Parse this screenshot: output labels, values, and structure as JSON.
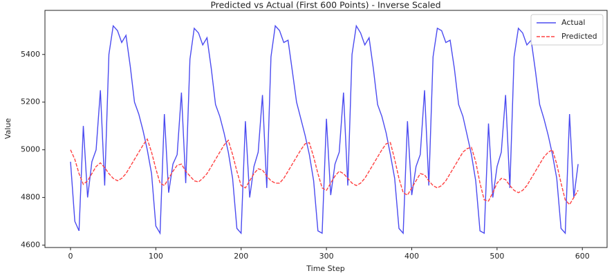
{
  "chart_data": {
    "type": "line",
    "title": "Predicted vs Actual (First 600 Points) - Inverse Scaled",
    "x_label": "Time Step",
    "y_label": "Value",
    "x": [
      0,
      5,
      10,
      15,
      20,
      25,
      30,
      35,
      40,
      45,
      50,
      55,
      60,
      65,
      70,
      75,
      80,
      85,
      90,
      95,
      100,
      105,
      110,
      115,
      120,
      125,
      130,
      135,
      140,
      145,
      150,
      155,
      160,
      165,
      170,
      175,
      180,
      185,
      190,
      195,
      200,
      205,
      210,
      215,
      220,
      225,
      230,
      235,
      240,
      245,
      250,
      255,
      260,
      265,
      270,
      275,
      280,
      285,
      290,
      295,
      300,
      305,
      310,
      315,
      320,
      325,
      330,
      335,
      340,
      345,
      350,
      355,
      360,
      365,
      370,
      375,
      380,
      385,
      390,
      395,
      400,
      405,
      410,
      415,
      420,
      425,
      430,
      435,
      440,
      445,
      450,
      455,
      460,
      465,
      470,
      475,
      480,
      485,
      490,
      495,
      500,
      505,
      510,
      515,
      520,
      525,
      530,
      535,
      540,
      545,
      550,
      555,
      560,
      565,
      570,
      575,
      580,
      585,
      590,
      595
    ],
    "series": [
      {
        "name": "Actual",
        "color": "#4a4af0",
        "linestyle": "-",
        "values": [
          4950,
          4700,
          4660,
          5100,
          4800,
          4950,
          5000,
          5250,
          4850,
          5400,
          5520,
          5500,
          5450,
          5480,
          5350,
          5200,
          5150,
          5080,
          5000,
          4900,
          4680,
          4650,
          5150,
          4820,
          4940,
          4980,
          5240,
          4860,
          5380,
          5510,
          5490,
          5440,
          5470,
          5340,
          5190,
          5140,
          5070,
          4990,
          4880,
          4670,
          4650,
          5120,
          4800,
          4930,
          4990,
          5230,
          4840,
          5390,
          5520,
          5500,
          5450,
          5460,
          5330,
          5200,
          5130,
          5060,
          4980,
          4870,
          4660,
          4650,
          5130,
          4810,
          4940,
          4990,
          5240,
          4850,
          5400,
          5520,
          5490,
          5440,
          5470,
          5340,
          5190,
          5140,
          5070,
          4980,
          4880,
          4670,
          4650,
          5120,
          4810,
          4930,
          4980,
          5250,
          4850,
          5390,
          5510,
          5500,
          5450,
          5460,
          5340,
          5190,
          5140,
          5060,
          4980,
          4870,
          4660,
          4650,
          5110,
          4800,
          4930,
          4990,
          5230,
          4840,
          5390,
          5510,
          5490,
          5440,
          5460,
          5330,
          5190,
          5130,
          5060,
          4980,
          4880,
          4670,
          4650,
          5150,
          4800,
          4940
        ]
      },
      {
        "name": "Predicted",
        "color": "#ff4040",
        "linestyle": "--",
        "values": [
          5000,
          4960,
          4900,
          4855,
          4870,
          4900,
          4930,
          4945,
          4925,
          4900,
          4880,
          4870,
          4880,
          4900,
          4930,
          4960,
          4990,
          5020,
          5045,
          4990,
          4920,
          4860,
          4850,
          4880,
          4910,
          4935,
          4940,
          4910,
          4890,
          4870,
          4865,
          4880,
          4900,
          4930,
          4960,
          4990,
          5020,
          5040,
          4980,
          4910,
          4850,
          4840,
          4870,
          4900,
          4920,
          4915,
          4890,
          4870,
          4860,
          4860,
          4880,
          4910,
          4940,
          4970,
          5000,
          5025,
          5030,
          4970,
          4900,
          4840,
          4830,
          4860,
          4890,
          4910,
          4900,
          4880,
          4860,
          4850,
          4860,
          4880,
          4910,
          4940,
          4970,
          5000,
          5025,
          5030,
          4960,
          4880,
          4820,
          4810,
          4840,
          4870,
          4900,
          4895,
          4870,
          4850,
          4840,
          4850,
          4870,
          4900,
          4930,
          4960,
          4990,
          5005,
          5010,
          4950,
          4860,
          4790,
          4785,
          4820,
          4860,
          4880,
          4875,
          4850,
          4830,
          4820,
          4830,
          4850,
          4880,
          4910,
          4940,
          4970,
          4990,
          5000,
          4940,
          4860,
          4790,
          4770,
          4800,
          4830
        ]
      }
    ],
    "xlim": [
      -30,
      629
    ],
    "ylim": [
      4590,
      5585
    ],
    "xticks": [
      0,
      100,
      200,
      300,
      400,
      500,
      600
    ],
    "yticks": [
      4600,
      4800,
      5000,
      5200,
      5400
    ],
    "legend": "upper right"
  }
}
